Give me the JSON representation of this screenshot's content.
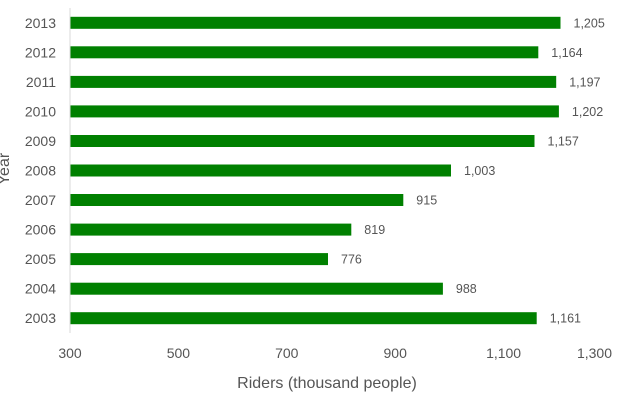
{
  "chart_data": {
    "type": "bar",
    "orientation": "horizontal",
    "categories": [
      "2013",
      "2012",
      "2011",
      "2010",
      "2009",
      "2008",
      "2007",
      "2006",
      "2005",
      "2004",
      "2003"
    ],
    "values": [
      1205,
      1164,
      1197,
      1202,
      1157,
      1003,
      915,
      819,
      776,
      988,
      1161
    ],
    "data_labels": [
      "1,205",
      "1,164",
      "1,197",
      "1,202",
      "1,157",
      "1,003",
      "915",
      "819",
      "776",
      "988",
      "1,161"
    ],
    "xlabel": "Riders (thousand people)",
    "ylabel": "Year",
    "xlim": [
      300,
      1300
    ],
    "x_ticks": [
      300,
      500,
      700,
      900,
      1100,
      1300
    ],
    "x_tick_labels": [
      "300",
      "500",
      "700",
      "900",
      "1,100",
      "1,300"
    ],
    "bar_color": "#008000",
    "grid": false,
    "legend": "none"
  }
}
